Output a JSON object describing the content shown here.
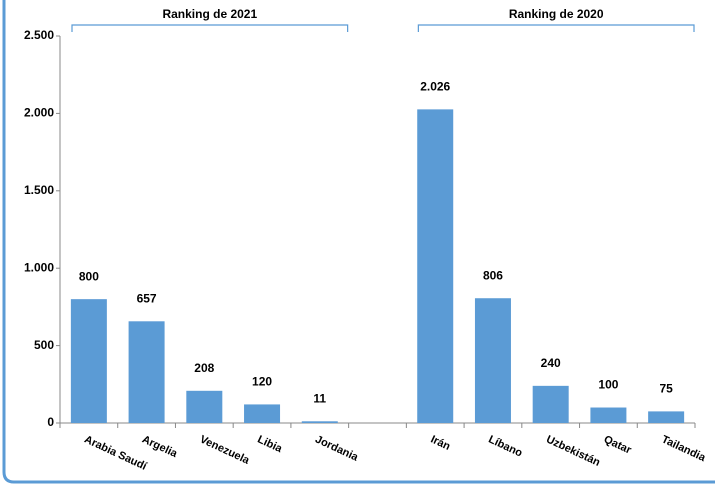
{
  "chart_data": {
    "type": "bar",
    "annotations": [
      "Ranking de 2021",
      "Ranking de 2020"
    ],
    "categories": [
      "Arabia Saudí",
      "Argelia",
      "Venezuela",
      "Libia",
      "Jordania",
      null,
      "Irán",
      "Líbano",
      "Uzbekistán",
      "Qatar",
      "Tailandia"
    ],
    "values": [
      800,
      657,
      208,
      120,
      11,
      null,
      2026,
      806,
      240,
      100,
      75
    ],
    "value_labels": [
      "800",
      "657",
      "208",
      "120",
      "11",
      null,
      "2.026",
      "806",
      "240",
      "100",
      "75"
    ],
    "color": "#5b9bd5",
    "ylim": [
      0,
      2500
    ],
    "yticks": [
      0,
      500,
      {
        "value": 1000,
        "label": "1.000"
      },
      {
        "value": 1500,
        "label": "1.500"
      },
      {
        "value": 2000,
        "label": "2.000"
      },
      {
        "value": 2500,
        "label": "2.500"
      }
    ],
    "grid": false
  }
}
